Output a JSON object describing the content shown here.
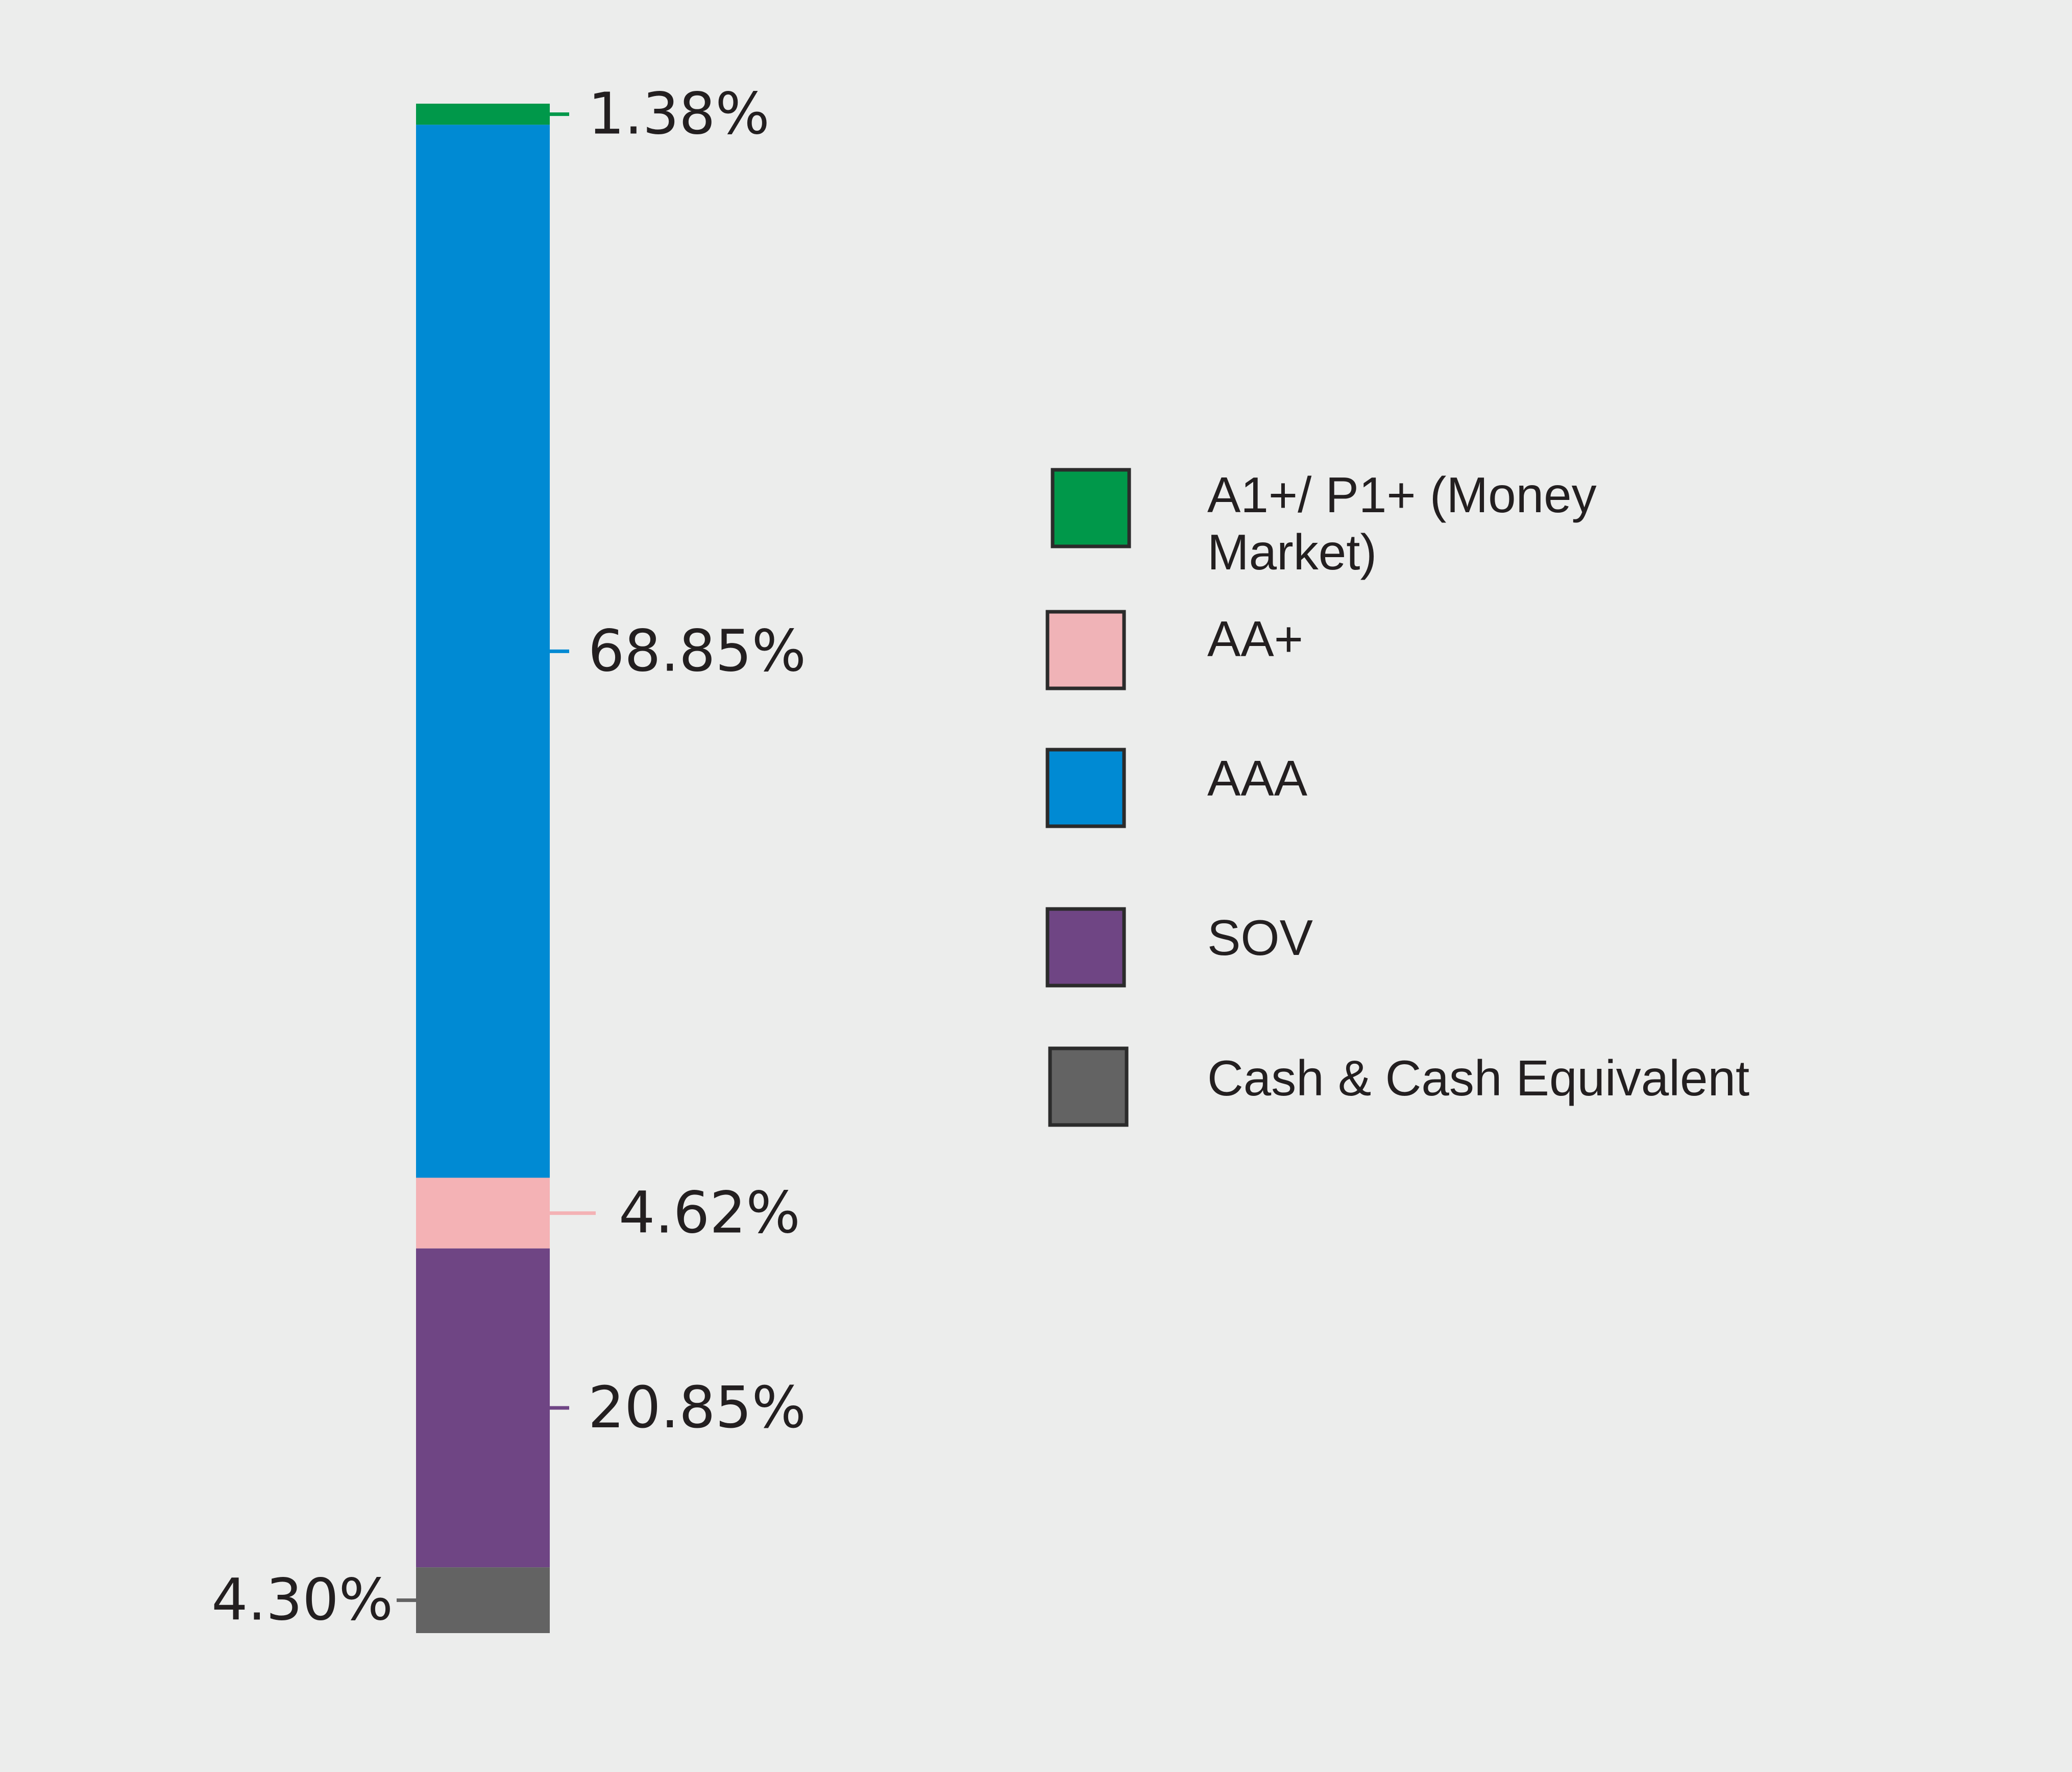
{
  "chart_data": {
    "type": "bar",
    "orientation": "vertical-stacked",
    "legend_placement": "right",
    "grid": false,
    "series": [
      {
        "name": "A1+/ P1+ (Money Market)",
        "value": 1.38,
        "label": "1.38%",
        "color": "#00984a"
      },
      {
        "name": "AAA",
        "value": 68.85,
        "label": "68.85%",
        "color": "#008ad3"
      },
      {
        "name": "AA+",
        "value": 4.62,
        "label": "4.62%",
        "color": "#f4b2b5"
      },
      {
        "name": "SOV",
        "value": 20.85,
        "label": "20.85%",
        "color": "#6f4584"
      },
      {
        "name": "Cash & Cash Equivalent",
        "value": 4.3,
        "label": "4.30%",
        "color": "#636363"
      }
    ],
    "legend": [
      {
        "lines": [
          "A1+/ P1+ (Money",
          "Market)"
        ],
        "color": "#00984a"
      },
      {
        "lines": [
          "AA+"
        ],
        "color": "#f0b3b7"
      },
      {
        "lines": [
          "AAA"
        ],
        "color": "#008ad3"
      },
      {
        "lines": [
          "SOV"
        ],
        "color": "#6f4584"
      },
      {
        "lines": [
          "Cash & Cash Equivalent"
        ],
        "color": "#636363"
      }
    ]
  }
}
